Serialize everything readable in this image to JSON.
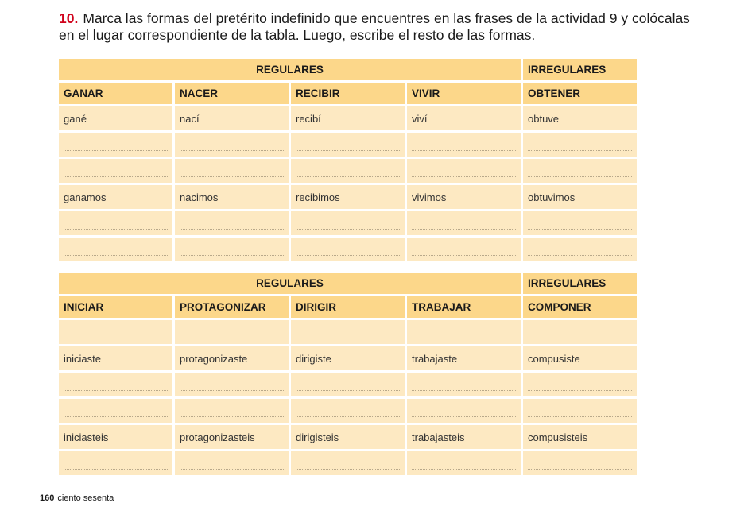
{
  "exercise": {
    "number": "10.",
    "text": "Marca las formas del pretérito indefinido que encuentres en las frases de la actividad 9 y colócalas en el lugar correspondiente de la tabla. Luego, escribe el resto de las formas."
  },
  "table1": {
    "regulares_label": "REGULARES",
    "irregulares_label": "IRREGULARES",
    "verbs": [
      "GANAR",
      "NACER",
      "RECIBIR",
      "VIVIR",
      "OBTENER"
    ],
    "rows": [
      [
        "gané",
        "nací",
        "recibí",
        "viví",
        "obtuve"
      ],
      [
        "",
        "",
        "",
        "",
        ""
      ],
      [
        "",
        "",
        "",
        "",
        ""
      ],
      [
        "ganamos",
        "nacimos",
        "recibimos",
        "vivimos",
        "obtuvimos"
      ],
      [
        "",
        "",
        "",
        "",
        ""
      ],
      [
        "",
        "",
        "",
        "",
        ""
      ]
    ]
  },
  "table2": {
    "regulares_label": "REGULARES",
    "irregulares_label": "IRREGULARES",
    "verbs": [
      "INICIAR",
      "PROTAGONIZAR",
      "DIRIGIR",
      "TRABAJAR",
      "COMPONER"
    ],
    "rows": [
      [
        "",
        "",
        "",
        "",
        ""
      ],
      [
        "iniciaste",
        "protagonizaste",
        "dirigiste",
        "trabajaste",
        "compusiste"
      ],
      [
        "",
        "",
        "",
        "",
        ""
      ],
      [
        "",
        "",
        "",
        "",
        ""
      ],
      [
        "iniciasteis",
        "protagonizasteis",
        "dirigisteis",
        "trabajasteis",
        "compusisteis"
      ],
      [
        "",
        "",
        "",
        "",
        ""
      ]
    ]
  },
  "footer": {
    "page_number": "160",
    "page_words": "ciento sesenta"
  }
}
